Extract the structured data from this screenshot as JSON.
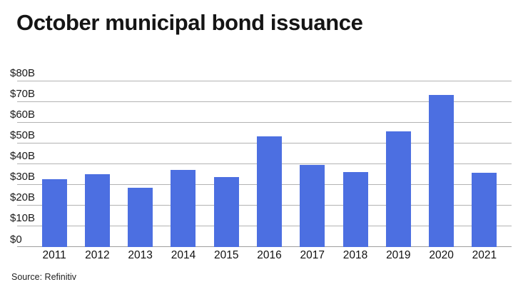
{
  "title": "October municipal bond issuance",
  "source": "Source: Refinitiv",
  "colors": {
    "bar": "#4c6fe1",
    "gridline": "#b3b3b3",
    "axis_line": "#9e9e9e",
    "title_text": "#151515",
    "tick_text": "#1a1a1a",
    "background": "#ffffff"
  },
  "chart_data": {
    "type": "bar",
    "title": "October municipal bond issuance",
    "categories": [
      "2011",
      "2012",
      "2013",
      "2014",
      "2015",
      "2016",
      "2017",
      "2018",
      "2019",
      "2020",
      "2021"
    ],
    "values": [
      32.5,
      35,
      28.5,
      37,
      33.5,
      53,
      39.5,
      36,
      55.5,
      73,
      35.5
    ],
    "unit": "$B",
    "xlabel": "",
    "ylabel": "",
    "ylim": [
      0,
      80
    ],
    "ytick_step": 10,
    "ytick_labels": [
      "$0",
      "$10B",
      "$20B",
      "$30B",
      "$40B",
      "$50B",
      "$60B",
      "$70B",
      "$80B"
    ],
    "grid": true,
    "legend": false,
    "source_label": "Source: Refinitiv"
  }
}
